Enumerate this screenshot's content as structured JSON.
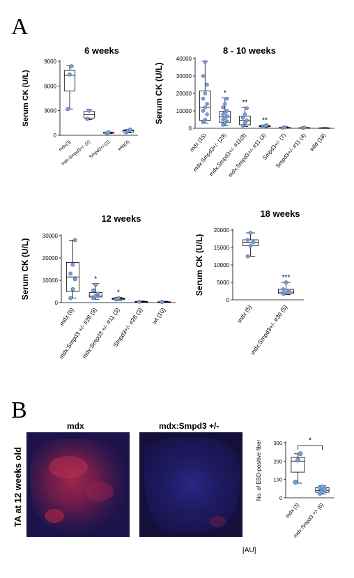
{
  "panels": {
    "a": "A",
    "b": "B"
  },
  "chart_data": [
    {
      "type": "box",
      "title": "6 weeks",
      "ylabel": "Serum CK (U/L)",
      "ylim": [
        0,
        9000
      ],
      "yticks": [
        0,
        3000,
        6000,
        9000
      ],
      "categories": [
        "mdx(3)",
        "mdx:Smpd3+/- (2)",
        "Smpd3+/-(2)",
        "wild(3)"
      ],
      "boxes": [
        {
          "min": 3200,
          "q1": 5400,
          "median": 7300,
          "q3": 7900,
          "max": 8500,
          "points": [
            3200,
            7400,
            8400
          ]
        },
        {
          "min": 1900,
          "q1": 2100,
          "median": 2500,
          "q3": 2900,
          "max": 3100,
          "points": [
            2000,
            3000
          ]
        },
        {
          "min": 200,
          "q1": 250,
          "median": 300,
          "q3": 350,
          "max": 400,
          "points": [
            250,
            350
          ]
        },
        {
          "min": 300,
          "q1": 400,
          "median": 550,
          "q3": 650,
          "max": 700,
          "points": [
            350,
            550,
            700
          ]
        }
      ],
      "significance": [
        "",
        "",
        "",
        ""
      ]
    },
    {
      "type": "box",
      "title": "8 - 10 weeks",
      "ylabel": "Serum CK (U/L)",
      "ylim": [
        0,
        40000
      ],
      "yticks": [
        0,
        10000,
        20000,
        30000,
        40000
      ],
      "categories": [
        "mdx (15)",
        "mdx:Smpd3+/- (29)",
        "mdx:Smpd3+/- #11(9)",
        "mdx:Smpd3+/- #11 (3)",
        "Smpd3+/- (7)",
        "Smpd3+/- #11 (4)",
        "wild (18)"
      ],
      "boxes": [
        {
          "min": 3000,
          "q1": 4500,
          "median": 12000,
          "q3": 21500,
          "max": 38500,
          "points": [
            3500,
            5000,
            8000,
            10000,
            12000,
            14000,
            17000,
            20000,
            25000,
            30000,
            38000
          ]
        },
        {
          "min": 1500,
          "q1": 3500,
          "median": 6500,
          "q3": 9800,
          "max": 17500,
          "points": [
            2000,
            3000,
            4000,
            5000,
            6000,
            7000,
            8000,
            9000,
            10000,
            12000,
            14000,
            17000
          ]
        },
        {
          "min": 1000,
          "q1": 2000,
          "median": 4500,
          "q3": 7000,
          "max": 12000,
          "points": [
            1500,
            3000,
            4500,
            6000,
            8000,
            11500
          ]
        },
        {
          "min": 600,
          "q1": 900,
          "median": 1200,
          "q3": 1600,
          "max": 1900,
          "points": [
            800,
            1300,
            1800
          ]
        },
        {
          "min": 100,
          "q1": 200,
          "median": 300,
          "q3": 500,
          "max": 900,
          "points": [
            300,
            600
          ]
        },
        {
          "min": 100,
          "q1": 150,
          "median": 250,
          "q3": 350,
          "max": 500,
          "points": [
            200,
            400
          ]
        },
        {
          "min": 50,
          "q1": 100,
          "median": 150,
          "q3": 250,
          "max": 400,
          "points": []
        }
      ],
      "significance": [
        "",
        "*",
        "**",
        "**",
        "",
        "",
        ""
      ]
    },
    {
      "type": "box",
      "title": "12 weeks",
      "ylabel": "Serum CK (U/L)",
      "ylim": [
        0,
        30000
      ],
      "yticks": [
        0,
        10000,
        20000,
        30000
      ],
      "categories": [
        "mdx (6)",
        "mdx:Smpd3 +/- #28 (9)",
        "mdx:Smpd3 +/- #11 (3)",
        "Smpd3+/- #28 (3)",
        "wt (10)"
      ],
      "boxes": [
        {
          "min": 2000,
          "q1": 5000,
          "median": 11500,
          "q3": 18000,
          "max": 28000,
          "points": [
            2000,
            6000,
            10500,
            13000,
            17000,
            28000
          ]
        },
        {
          "min": 1500,
          "q1": 2500,
          "median": 3000,
          "q3": 4500,
          "max": 8500,
          "points": [
            2000,
            3000,
            4000,
            5500,
            8000
          ]
        },
        {
          "min": 1000,
          "q1": 1300,
          "median": 1700,
          "q3": 2000,
          "max": 2300,
          "points": [
            1400,
            2000
          ]
        },
        {
          "min": 200,
          "q1": 300,
          "median": 400,
          "q3": 500,
          "max": 700,
          "points": [
            400
          ]
        },
        {
          "min": 100,
          "q1": 200,
          "median": 300,
          "q3": 400,
          "max": 600,
          "points": [
            300
          ]
        }
      ],
      "significance": [
        "",
        "*",
        "*",
        "",
        ""
      ]
    },
    {
      "type": "box",
      "title": "18 weeks",
      "ylabel": "Serum CK (U/L)",
      "ylim": [
        0,
        20000
      ],
      "yticks": [
        0,
        5000,
        10000,
        15000,
        20000
      ],
      "categories": [
        "mdx (5)",
        "mdx:Smpd3+/- #30 (5)"
      ],
      "boxes": [
        {
          "min": 12500,
          "q1": 15500,
          "median": 16500,
          "q3": 17200,
          "max": 19200,
          "points": [
            12500,
            15500,
            16500,
            17200,
            19200
          ]
        },
        {
          "min": 1500,
          "q1": 1800,
          "median": 2200,
          "q3": 3000,
          "max": 5000,
          "points": [
            1700,
            2100,
            2600,
            3000,
            5000
          ]
        }
      ],
      "significance": [
        "",
        "***"
      ]
    },
    {
      "type": "box",
      "title": "",
      "ylabel": "No. of EBD-positive fiber",
      "ylim": [
        0,
        300
      ],
      "yticks": [
        0,
        100,
        200,
        300
      ],
      "categories": [
        "mdx (3)",
        "mdx:Smpd3 +/- (6)"
      ],
      "boxes": [
        {
          "min": 80,
          "q1": 140,
          "median": 200,
          "q3": 220,
          "max": 240,
          "points": [
            85,
            205,
            240
          ]
        },
        {
          "min": 20,
          "q1": 30,
          "median": 40,
          "q3": 55,
          "max": 65,
          "points": [
            25,
            35,
            45,
            55,
            60
          ]
        }
      ],
      "significance_bracket": "*"
    }
  ],
  "micrographs": {
    "left_label": "mdx",
    "right_label": "mdx:Smpd3 +/-",
    "side_label": "TA at 12 weeks old",
    "unit_label": "[AU]"
  },
  "colors": {
    "point": "#7a9fd3",
    "point_stroke": "#4a6ea8",
    "box": "#000000",
    "micro_bg": "#1a1250"
  }
}
